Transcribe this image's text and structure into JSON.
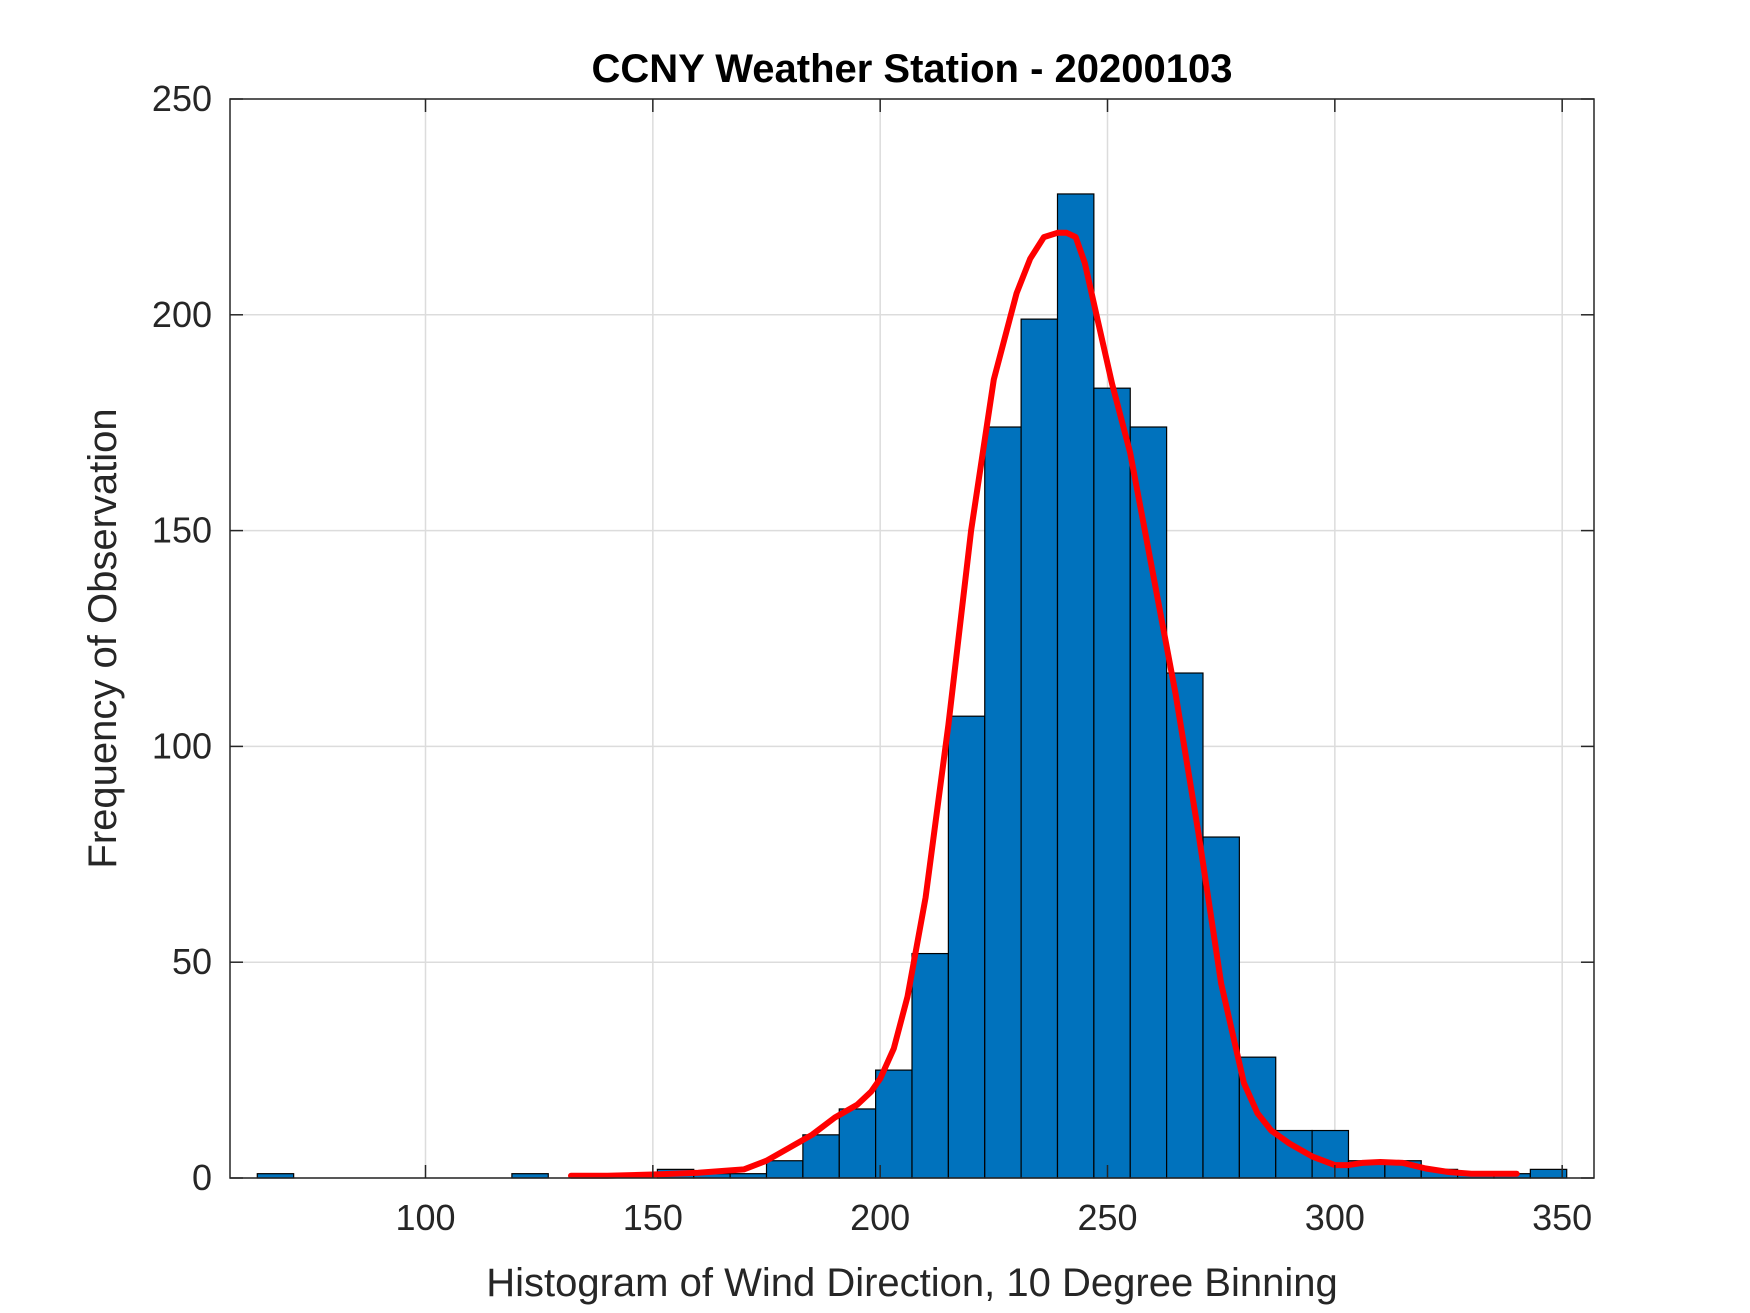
{
  "chart_data": {
    "type": "bar",
    "title": "CCNY Weather Station - 20200103",
    "xlabel": "Histogram of Wind Direction, 10 Degree Binning",
    "ylabel": "Frequency of Observation",
    "xlim": [
      57,
      357
    ],
    "ylim": [
      0,
      250
    ],
    "xticks": [
      100,
      150,
      200,
      250,
      300,
      350
    ],
    "yticks": [
      0,
      50,
      100,
      150,
      200,
      250
    ],
    "grid": true,
    "colors": {
      "bar": "#0072bd",
      "fit": "#ff0000"
    },
    "bins": [
      {
        "x0": 63,
        "x1": 71,
        "value": 1
      },
      {
        "x0": 119,
        "x1": 127,
        "value": 1
      },
      {
        "x0": 151,
        "x1": 159,
        "value": 2
      },
      {
        "x0": 159,
        "x1": 167,
        "value": 1
      },
      {
        "x0": 167,
        "x1": 175,
        "value": 1
      },
      {
        "x0": 175,
        "x1": 183,
        "value": 4
      },
      {
        "x0": 183,
        "x1": 191,
        "value": 10
      },
      {
        "x0": 191,
        "x1": 199,
        "value": 16
      },
      {
        "x0": 199,
        "x1": 207,
        "value": 25
      },
      {
        "x0": 207,
        "x1": 215,
        "value": 52
      },
      {
        "x0": 215,
        "x1": 223,
        "value": 107
      },
      {
        "x0": 223,
        "x1": 231,
        "value": 174
      },
      {
        "x0": 231,
        "x1": 239,
        "value": 199
      },
      {
        "x0": 239,
        "x1": 247,
        "value": 228
      },
      {
        "x0": 247,
        "x1": 255,
        "value": 183
      },
      {
        "x0": 255,
        "x1": 263,
        "value": 174
      },
      {
        "x0": 263,
        "x1": 271,
        "value": 117
      },
      {
        "x0": 271,
        "x1": 279,
        "value": 79
      },
      {
        "x0": 279,
        "x1": 287,
        "value": 28
      },
      {
        "x0": 287,
        "x1": 295,
        "value": 11
      },
      {
        "x0": 295,
        "x1": 303,
        "value": 11
      },
      {
        "x0": 303,
        "x1": 311,
        "value": 4
      },
      {
        "x0": 311,
        "x1": 319,
        "value": 4
      },
      {
        "x0": 319,
        "x1": 327,
        "value": 2
      },
      {
        "x0": 327,
        "x1": 335,
        "value": 1
      },
      {
        "x0": 335,
        "x1": 343,
        "value": 1
      },
      {
        "x0": 343,
        "x1": 351,
        "value": 2
      }
    ],
    "fit_curve": {
      "x": [
        132,
        140,
        150,
        160,
        170,
        175,
        180,
        185,
        190,
        195,
        198,
        200,
        203,
        206,
        210,
        215,
        220,
        225,
        230,
        233,
        236,
        239,
        241,
        243,
        245,
        248,
        251,
        255,
        260,
        265,
        270,
        275,
        280,
        283,
        286,
        290,
        295,
        300,
        303,
        306,
        310,
        315,
        320,
        325,
        330,
        335,
        340
      ],
      "y": [
        0.5,
        0.5,
        0.8,
        1.2,
        2,
        4,
        7,
        10,
        14,
        17,
        20,
        23,
        30,
        42,
        65,
        105,
        150,
        185,
        205,
        213,
        218,
        219,
        219,
        218,
        212,
        198,
        184,
        168,
        140,
        112,
        80,
        45,
        22,
        15,
        11,
        8,
        5,
        3,
        3,
        3.5,
        3.7,
        3.5,
        2.2,
        1.4,
        1,
        1,
        1
      ]
    }
  }
}
